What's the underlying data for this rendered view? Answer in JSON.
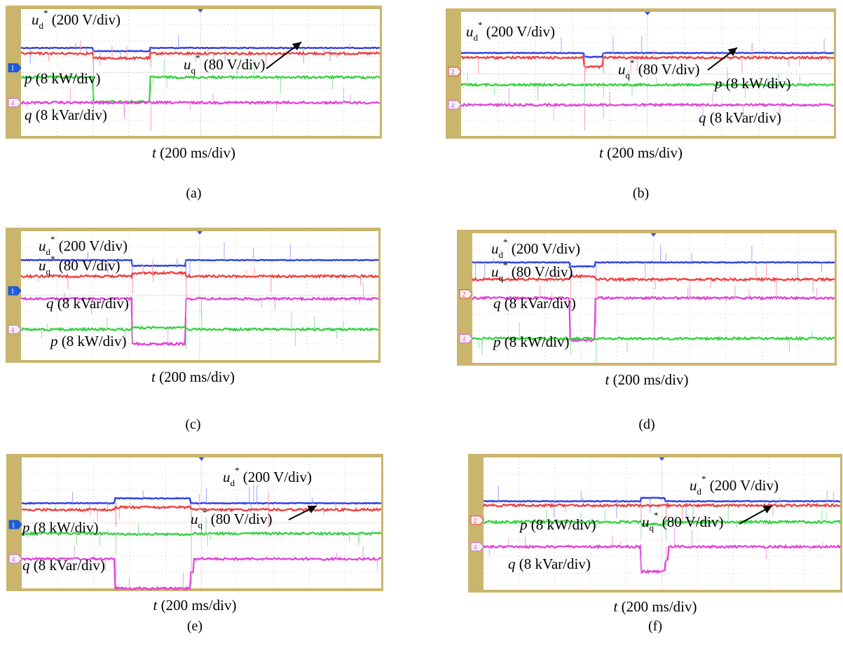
{
  "colors": {
    "ud": "#2f3fe6",
    "uq": "#ef3b3b",
    "p": "#2fd13a",
    "q": "#e040d6",
    "frame": "#c9b56c",
    "grid": "#b9b9b9",
    "screen": "#ffffff",
    "glitch_ud": "#9aa3ff",
    "glitch_uq": "#ff9a9a",
    "glitch_p": "#8fe39a",
    "glitch_q": "#f29ae8",
    "text": "#000000"
  },
  "chart_data": [
    {
      "panel_label": "(a)",
      "xlabel_sym": "t",
      "xlabel_rest": " (200 ms/div)",
      "markers": [
        "1",
        "4"
      ],
      "series": [
        {
          "name": "ud",
          "sym": "u",
          "sub": "d",
          "rest": " (200 V/div)",
          "base": 1.55,
          "dip": 1.35,
          "jump": 0
        },
        {
          "name": "uq",
          "sym": "u",
          "sub": "q",
          "rest": " (80 V/div)",
          "base": 1.2,
          "dip": 0.9,
          "jump": 0
        },
        {
          "name": "p",
          "sym": "p",
          "rest": " (8 kW/div)",
          "base": -0.3,
          "dip": -1.85,
          "jump": 0
        },
        {
          "name": "q",
          "sym": "q",
          "rest": " (8 kVar/div)",
          "base": -1.9,
          "dip": -1.9,
          "jump": 0
        }
      ],
      "fault": [
        2.0,
        3.6
      ]
    },
    {
      "panel_label": "(b)",
      "xlabel_sym": "t",
      "xlabel_rest": " (200 ms/div)",
      "markers": [
        "2",
        "4"
      ],
      "series": [
        {
          "name": "ud",
          "sym": "u",
          "sub": "d",
          "rest": " (200 V/div)",
          "base": 1.35,
          "dip": 1.1,
          "jump": 0
        },
        {
          "name": "uq",
          "sym": "u",
          "sub": "q",
          "rest": " (80 V/div)",
          "base": 1.05,
          "dip": 0.45,
          "jump": 0
        },
        {
          "name": "p",
          "sym": "p",
          "rest": " (8 kW/div)",
          "base": -0.7,
          "dip": -0.7,
          "jump": 0
        },
        {
          "name": "q",
          "sym": "q",
          "rest": " (8 kVar/div)",
          "base": -2.0,
          "dip": -2.0,
          "jump": 0
        }
      ],
      "fault": [
        3.3,
        3.8
      ]
    },
    {
      "panel_label": "(c)",
      "xlabel_sym": "t",
      "xlabel_rest": " (200 ms/div)",
      "markers": [
        "1",
        "4"
      ],
      "series": [
        {
          "name": "ud",
          "sym": "u",
          "sub": "d",
          "rest": " (200 V/div)",
          "base": 2.2,
          "dip": 1.85,
          "jump": 0
        },
        {
          "name": "uq",
          "sym": "u",
          "sub": "q",
          "rest": " (80 V/div)",
          "base": 1.2,
          "dip": 1.4,
          "jump": 0
        },
        {
          "name": "q",
          "sym": "q",
          "rest": " (8 kVar/div)",
          "base": -0.2,
          "dip": -3.0,
          "jump": 0
        },
        {
          "name": "p",
          "sym": "p",
          "rest": " (8 kW/div)",
          "base": -2.1,
          "dip": -2.0,
          "jump": 0
        }
      ],
      "fault": [
        3.1,
        4.6
      ]
    },
    {
      "panel_label": "(d)",
      "xlabel_sym": "t",
      "xlabel_rest": " (200 ms/div)",
      "markers": [
        "2",
        "4"
      ],
      "series": [
        {
          "name": "ud",
          "sym": "u",
          "sub": "d",
          "rest": " (200 V/div)",
          "base": 2.2,
          "dip": 1.95,
          "jump": 0
        },
        {
          "name": "uq",
          "sym": "u",
          "sub": "q",
          "rest": " (80 V/div)",
          "base": 1.15,
          "dip": 1.35,
          "jump": 0
        },
        {
          "name": "q",
          "sym": "q",
          "rest": " (8 kVar/div)",
          "base": 0.0,
          "dip": -2.6,
          "jump": 0
        },
        {
          "name": "p",
          "sym": "p",
          "rest": " (8 kW/div)",
          "base": -2.5,
          "dip": -2.5,
          "jump": 0
        }
      ],
      "fault": [
        2.7,
        3.4
      ]
    },
    {
      "panel_label": "(e)",
      "xlabel_sym": "t",
      "xlabel_rest": " (200 ms/div)",
      "markers": [
        "1",
        "4"
      ],
      "series": [
        {
          "name": "ud",
          "sym": "u",
          "sub": "d",
          "rest": " (200 V/div)",
          "base": 1.2,
          "dip": 1.5,
          "jump": 0
        },
        {
          "name": "uq",
          "sym": "u",
          "sub": "q",
          "rest": " (80 V/div)",
          "base": 0.8,
          "dip": 0.95,
          "jump": 0
        },
        {
          "name": "p",
          "sym": "p",
          "rest": " (8 kW/div)",
          "base": -0.65,
          "dip": -0.7,
          "jump": 0
        },
        {
          "name": "q",
          "sym": "q",
          "rest": " (8 kVar/div)",
          "base": -2.2,
          "dip": -4.0,
          "jump": 0.8
        }
      ],
      "fault": [
        2.6,
        4.7
      ]
    },
    {
      "panel_label": "(f)",
      "xlabel_sym": "t",
      "xlabel_rest": " (200 ms/div)",
      "markers": [
        "2",
        "4"
      ],
      "series": [
        {
          "name": "ud",
          "sym": "u",
          "sub": "d",
          "rest": " (200 V/div)",
          "base": 1.35,
          "dip": 1.55,
          "jump": 0
        },
        {
          "name": "uq",
          "sym": "u",
          "sub": "q",
          "rest": " (80 V/div)",
          "base": 1.1,
          "dip": 1.1,
          "jump": 0
        },
        {
          "name": "p",
          "sym": "p",
          "rest": " (8 kW/div)",
          "base": 0.1,
          "dip": -0.05,
          "jump": 0
        },
        {
          "name": "q",
          "sym": "q",
          "rest": " (8 kVar/div)",
          "base": -1.4,
          "dip": -2.9,
          "jump": 0.8
        }
      ],
      "fault": [
        4.4,
        5.1
      ]
    }
  ]
}
